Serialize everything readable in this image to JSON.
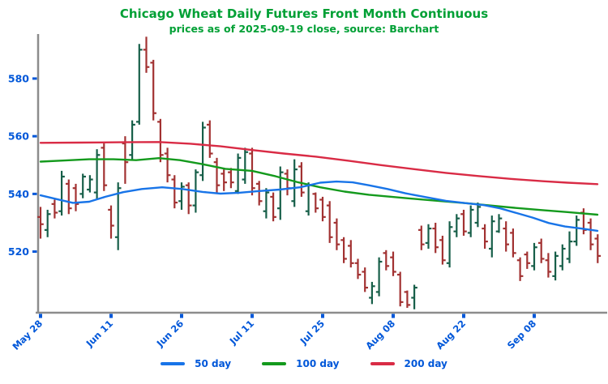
{
  "title": "Chicago Wheat Daily Futures Front Month Continuous",
  "subtitle": "prices as of 2025-09-19 close, source: Barchart",
  "colors": {
    "title_green": "#00A035",
    "axis_text_blue": "#0057D9",
    "axis_gray": "#8C8C8C",
    "candle_up": "#175F49",
    "candle_down": "#A23232",
    "ma50": "#1874E8",
    "ma100": "#149A1D",
    "ma200": "#D92B45",
    "background": "#FFFFFF"
  },
  "legend": {
    "items": [
      {
        "label": "50 day",
        "color_key": "ma50"
      },
      {
        "label": "100 day",
        "color_key": "ma100"
      },
      {
        "label": "200 day",
        "color_key": "ma200"
      }
    ],
    "position": "bottom center"
  },
  "chart_data": {
    "type": "candlestick-ohlc",
    "title": "Chicago Wheat Daily Futures Front Month Continuous",
    "subtitle": "prices as of 2025-09-19 close, source: Barchart",
    "xlabel": "",
    "ylabel": "",
    "grid": false,
    "legend_position": "bottom center",
    "y_axis": {
      "tick_labels": [
        580,
        560,
        540,
        520
      ],
      "range": [
        498,
        596
      ]
    },
    "x_axis": {
      "tick_labels": [
        "May 28",
        "Jun 11",
        "Jun 26",
        "Jul 11",
        "Jul 25",
        "Aug 08",
        "Aug 22",
        "Sep 08"
      ],
      "tick_indices": [
        0,
        10,
        20,
        30,
        40,
        50,
        60,
        70
      ]
    },
    "dates": [
      "2025-05-28",
      "2025-05-29",
      "2025-05-30",
      "2025-06-02",
      "2025-06-03",
      "2025-06-04",
      "2025-06-05",
      "2025-06-06",
      "2025-06-09",
      "2025-06-10",
      "2025-06-11",
      "2025-06-12",
      "2025-06-13",
      "2025-06-16",
      "2025-06-17",
      "2025-06-18",
      "2025-06-20",
      "2025-06-23",
      "2025-06-24",
      "2025-06-25",
      "2025-06-26",
      "2025-06-27",
      "2025-06-30",
      "2025-07-01",
      "2025-07-02",
      "2025-07-03",
      "2025-07-07",
      "2025-07-08",
      "2025-07-09",
      "2025-07-10",
      "2025-07-11",
      "2025-07-14",
      "2025-07-15",
      "2025-07-16",
      "2025-07-17",
      "2025-07-18",
      "2025-07-21",
      "2025-07-22",
      "2025-07-23",
      "2025-07-24",
      "2025-07-25",
      "2025-07-28",
      "2025-07-29",
      "2025-07-30",
      "2025-07-31",
      "2025-08-01",
      "2025-08-04",
      "2025-08-05",
      "2025-08-06",
      "2025-08-07",
      "2025-08-08",
      "2025-08-11",
      "2025-08-12",
      "2025-08-13",
      "2025-08-14",
      "2025-08-15",
      "2025-08-18",
      "2025-08-19",
      "2025-08-20",
      "2025-08-21",
      "2025-08-22",
      "2025-08-25",
      "2025-08-26",
      "2025-08-27",
      "2025-08-28",
      "2025-08-29",
      "2025-09-02",
      "2025-09-03",
      "2025-09-04",
      "2025-09-05",
      "2025-09-08",
      "2025-09-09",
      "2025-09-10",
      "2025-09-11",
      "2025-09-12",
      "2025-09-15",
      "2025-09-16",
      "2025-09-17",
      "2025-09-18",
      "2025-09-19"
    ],
    "ohlc": [
      [
        532,
        535.5,
        524.5,
        529.5
      ],
      [
        527.5,
        534.5,
        525,
        533
      ],
      [
        536.5,
        538,
        531.5,
        533.5
      ],
      [
        534,
        548,
        532.5,
        546
      ],
      [
        543.5,
        545,
        533,
        535
      ],
      [
        542,
        543.5,
        534,
        536.5
      ],
      [
        540,
        547,
        538.5,
        546
      ],
      [
        541.5,
        546.5,
        540.5,
        545
      ],
      [
        540.5,
        555.5,
        538,
        553.5
      ],
      [
        556,
        557.5,
        541,
        543
      ],
      [
        534.5,
        536,
        524.5,
        529
      ],
      [
        525,
        544,
        520.5,
        542
      ],
      [
        557.5,
        560,
        543.5,
        551
      ],
      [
        553.5,
        565.5,
        552,
        564
      ],
      [
        565,
        592,
        564,
        590
      ],
      [
        590,
        594.5,
        582,
        584
      ],
      [
        585.5,
        586.5,
        565.5,
        568
      ],
      [
        565,
        566,
        551,
        553.5
      ],
      [
        554,
        556,
        544,
        546.5
      ],
      [
        545,
        546.5,
        535,
        537
      ],
      [
        537.5,
        544,
        534.5,
        542.5
      ],
      [
        543,
        544,
        533,
        536
      ],
      [
        536,
        548.5,
        533.5,
        547.5
      ],
      [
        546.5,
        565,
        544.5,
        563
      ],
      [
        564,
        565.5,
        552.5,
        554
      ],
      [
        551,
        552.5,
        540.5,
        543
      ],
      [
        547,
        548.5,
        541,
        544
      ],
      [
        547.5,
        549,
        542,
        544
      ],
      [
        541,
        554,
        540,
        552.5
      ],
      [
        545,
        556,
        543.5,
        554.5
      ],
      [
        554,
        556,
        539.5,
        542
      ],
      [
        543.5,
        544.5,
        536,
        537.5
      ],
      [
        534,
        542,
        531.5,
        540.5
      ],
      [
        539,
        540.5,
        530.5,
        532
      ],
      [
        535,
        549.5,
        531,
        547.5
      ],
      [
        547,
        548.5,
        539.5,
        542
      ],
      [
        537.5,
        552,
        535.5,
        548.5
      ],
      [
        549.5,
        551,
        539,
        540.5
      ],
      [
        534,
        544,
        532.5,
        543
      ],
      [
        540,
        540.5,
        533.5,
        535
      ],
      [
        538,
        539,
        530.5,
        532
      ],
      [
        536,
        537.5,
        523,
        525
      ],
      [
        530,
        531.5,
        520.5,
        522.5
      ],
      [
        524,
        525,
        516,
        517.5
      ],
      [
        522,
        524,
        514.5,
        516
      ],
      [
        516,
        517.5,
        510.5,
        512
      ],
      [
        513,
        514.5,
        506,
        507.5
      ],
      [
        504,
        509.5,
        501.8,
        508
      ],
      [
        506,
        518,
        504.5,
        516.5
      ],
      [
        519.5,
        520.5,
        513.5,
        515
      ],
      [
        518,
        520,
        511.5,
        513
      ],
      [
        512,
        513,
        501,
        502.5
      ],
      [
        506,
        506.5,
        500.5,
        501.5
      ],
      [
        504,
        508.5,
        500,
        507.5
      ],
      [
        527.5,
        529,
        520.5,
        522.5
      ],
      [
        523,
        529.5,
        521,
        528
      ],
      [
        528,
        530,
        519.5,
        521.5
      ],
      [
        524,
        525.5,
        515.5,
        517
      ],
      [
        516,
        530.5,
        514.5,
        528.5
      ],
      [
        527,
        533,
        525,
        531.5
      ],
      [
        533,
        534.5,
        525.5,
        527
      ],
      [
        526.5,
        536,
        525,
        534.5
      ],
      [
        530,
        537,
        528.5,
        535.5
      ],
      [
        528,
        529.5,
        521,
        523.5
      ],
      [
        521,
        532.5,
        518,
        530.5
      ],
      [
        527,
        533,
        526.5,
        531.5
      ],
      [
        528,
        530.5,
        520,
        522.5
      ],
      [
        526.5,
        528,
        518,
        519.5
      ],
      [
        517,
        518,
        509.8,
        511.5
      ],
      [
        519,
        520,
        514,
        516
      ],
      [
        515,
        523,
        513.5,
        521.5
      ],
      [
        523,
        524.5,
        516,
        517.5
      ],
      [
        517,
        519.5,
        511,
        513
      ],
      [
        511.5,
        520,
        510,
        518.5
      ],
      [
        515,
        522.5,
        513.5,
        521
      ],
      [
        517.5,
        527,
        516,
        523.5
      ],
      [
        523.5,
        532.5,
        522,
        531
      ],
      [
        533.5,
        535,
        526,
        527.5
      ],
      [
        530,
        531.5,
        520.5,
        522.5
      ],
      [
        524.5,
        526,
        516,
        518.5
      ]
    ],
    "moving_averages": {
      "50_day": [
        [
          50,
          539.5
        ],
        [
          70,
          538.2
        ],
        [
          90,
          536.9
        ],
        [
          110,
          537.3
        ],
        [
          130,
          539
        ],
        [
          152,
          540.6
        ],
        [
          175,
          541.7
        ],
        [
          200,
          542.3
        ],
        [
          225,
          541.7
        ],
        [
          250,
          540.7
        ],
        [
          272,
          540.1
        ],
        [
          295,
          540.4
        ],
        [
          320,
          541
        ],
        [
          345,
          541.5
        ],
        [
          370,
          542.3
        ],
        [
          395,
          543.9
        ],
        [
          415,
          544.3
        ],
        [
          435,
          544
        ],
        [
          455,
          543
        ],
        [
          478,
          541.7
        ],
        [
          500,
          540.2
        ],
        [
          525,
          538.9
        ],
        [
          550,
          537.6
        ],
        [
          575,
          536.8
        ],
        [
          597,
          536.1
        ],
        [
          617,
          535
        ],
        [
          637,
          533.4
        ],
        [
          657,
          531.8
        ],
        [
          677,
          529.9
        ],
        [
          697,
          528.7
        ],
        [
          717,
          528
        ],
        [
          737,
          527.2
        ]
      ],
      "100_day": [
        [
          50,
          551.2
        ],
        [
          80,
          551.6
        ],
        [
          110,
          552
        ],
        [
          140,
          552
        ],
        [
          168,
          551.7
        ],
        [
          196,
          552.4
        ],
        [
          222,
          551.7
        ],
        [
          248,
          550.4
        ],
        [
          278,
          548.7
        ],
        [
          311,
          548
        ],
        [
          340,
          546.1
        ],
        [
          368,
          544
        ],
        [
          395,
          542.3
        ],
        [
          425,
          540.8
        ],
        [
          455,
          539.7
        ],
        [
          487,
          538.9
        ],
        [
          518,
          538.1
        ],
        [
          548,
          537.4
        ],
        [
          578,
          536.7
        ],
        [
          608,
          535.9
        ],
        [
          638,
          535.1
        ],
        [
          668,
          534.4
        ],
        [
          700,
          533.7
        ],
        [
          737,
          532.8
        ]
      ],
      "200_day": [
        [
          50,
          557.7
        ],
        [
          100,
          557.8
        ],
        [
          150,
          557.9
        ],
        [
          196,
          558
        ],
        [
          235,
          557.4
        ],
        [
          272,
          556.5
        ],
        [
          311,
          555.2
        ],
        [
          350,
          554
        ],
        [
          390,
          552.9
        ],
        [
          430,
          551.5
        ],
        [
          470,
          550
        ],
        [
          510,
          548.6
        ],
        [
          550,
          547.3
        ],
        [
          590,
          546.2
        ],
        [
          630,
          545.2
        ],
        [
          670,
          544.4
        ],
        [
          700,
          543.9
        ],
        [
          737,
          543.4
        ]
      ]
    }
  }
}
